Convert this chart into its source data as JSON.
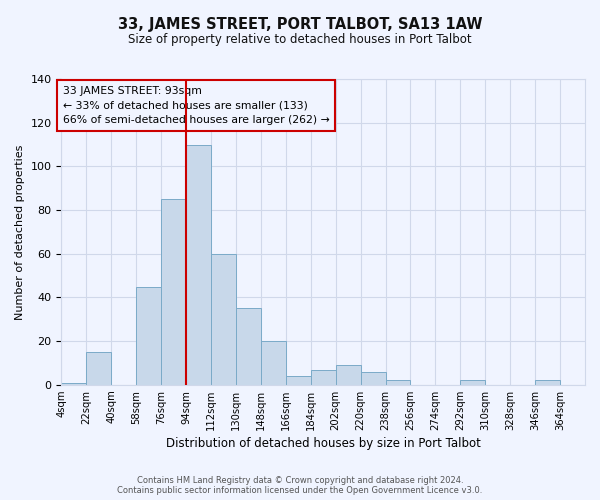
{
  "title": "33, JAMES STREET, PORT TALBOT, SA13 1AW",
  "subtitle": "Size of property relative to detached houses in Port Talbot",
  "xlabel": "Distribution of detached houses by size in Port Talbot",
  "ylabel": "Number of detached properties",
  "bin_labels": [
    "4sqm",
    "22sqm",
    "40sqm",
    "58sqm",
    "76sqm",
    "94sqm",
    "112sqm",
    "130sqm",
    "148sqm",
    "166sqm",
    "184sqm",
    "202sqm",
    "220sqm",
    "238sqm",
    "256sqm",
    "274sqm",
    "292sqm",
    "310sqm",
    "328sqm",
    "346sqm",
    "364sqm"
  ],
  "bin_edges": [
    4,
    22,
    40,
    58,
    76,
    94,
    112,
    130,
    148,
    166,
    184,
    202,
    220,
    238,
    256,
    274,
    292,
    310,
    328,
    346,
    364
  ],
  "bin_width": 18,
  "bar_heights": [
    1,
    15,
    0,
    45,
    85,
    110,
    60,
    35,
    20,
    4,
    7,
    9,
    6,
    2,
    0,
    0,
    2,
    0,
    0,
    2,
    0
  ],
  "bar_color": "#c8d8ea",
  "bar_edge_color": "#7aaac8",
  "vline_x": 94,
  "vline_color": "#cc0000",
  "annotation_title": "33 JAMES STREET: 93sqm",
  "annotation_line1": "← 33% of detached houses are smaller (133)",
  "annotation_line2": "66% of semi-detached houses are larger (262) →",
  "annotation_box_edge": "#cc0000",
  "ylim": [
    0,
    140
  ],
  "yticks": [
    0,
    20,
    40,
    60,
    80,
    100,
    120,
    140
  ],
  "xlim_left": 4,
  "xlim_right": 382,
  "footer1": "Contains HM Land Registry data © Crown copyright and database right 2024.",
  "footer2": "Contains public sector information licensed under the Open Government Licence v3.0.",
  "background_color": "#f0f4ff",
  "grid_color": "#d0d8ea",
  "title_fontsize": 10.5,
  "subtitle_fontsize": 8.5
}
